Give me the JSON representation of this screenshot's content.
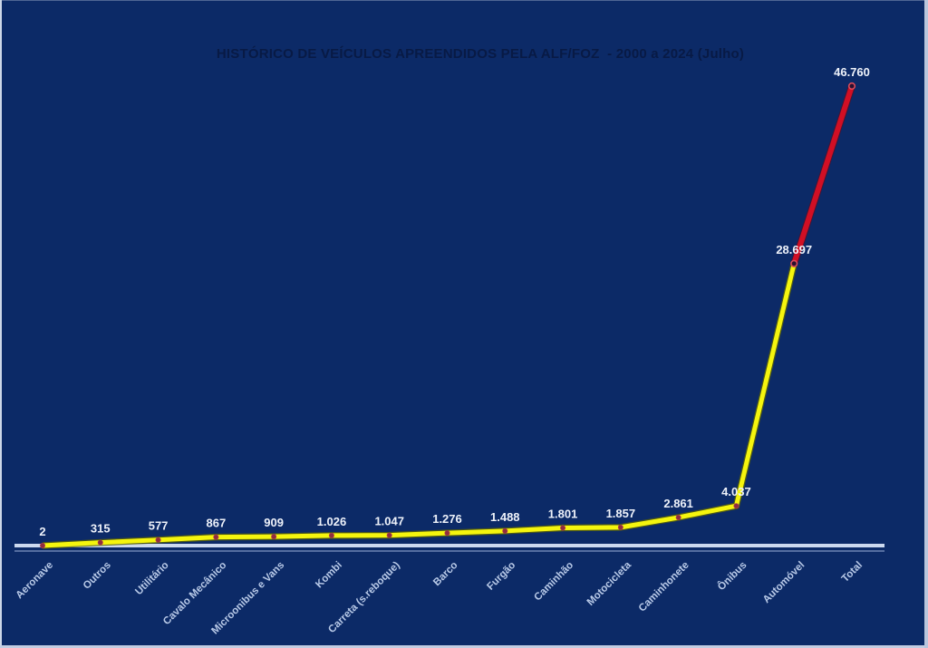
{
  "page": {
    "background_color": "#0c2a67",
    "frame_edge_color": "#c2cde2"
  },
  "chart_data": {
    "type": "line",
    "title": "HISTÓRICO DE VEÍCULOS APREENDIDOS PELA ALF/FOZ  - 2000 a 2024 (Julho)",
    "categories": [
      "Aeronave",
      "Outros",
      "Utilitário",
      "Cavalo Mecânico",
      "Microonibus e Vans",
      "Kombi",
      "Carreta (s.reboque)",
      "Barco",
      "Furgão",
      "Caminhão",
      "Motocicleta",
      "Caminhonete",
      "Ônibus",
      "Automóvel",
      "Total"
    ],
    "values": [
      2,
      315,
      577,
      867,
      909,
      1026,
      1047,
      1276,
      1488,
      1801,
      1857,
      2861,
      4037,
      28697,
      46760
    ],
    "value_labels": [
      "2",
      "315",
      "577",
      "867",
      "909",
      "1.026",
      "1.047",
      "1.276",
      "1.488",
      "1.801",
      "1.857",
      "2.861",
      "4.037",
      "28.697",
      "46.760"
    ],
    "xlabel": "",
    "ylabel": "",
    "ylim": [
      0,
      48000
    ],
    "grid": false,
    "legend": false,
    "line_color_main": "#f5f50e",
    "highlight_segment": {
      "from": "Automóvel",
      "to": "Total",
      "color": "#d10f24"
    },
    "marker_color": "#8c2e3e",
    "marker_ring_color": "#d94a5a",
    "value_label_color": "#eef2fa",
    "category_label_color": "#b9cae8",
    "axis_line_color": "#ccd9f0",
    "title_color": "#081a45"
  }
}
